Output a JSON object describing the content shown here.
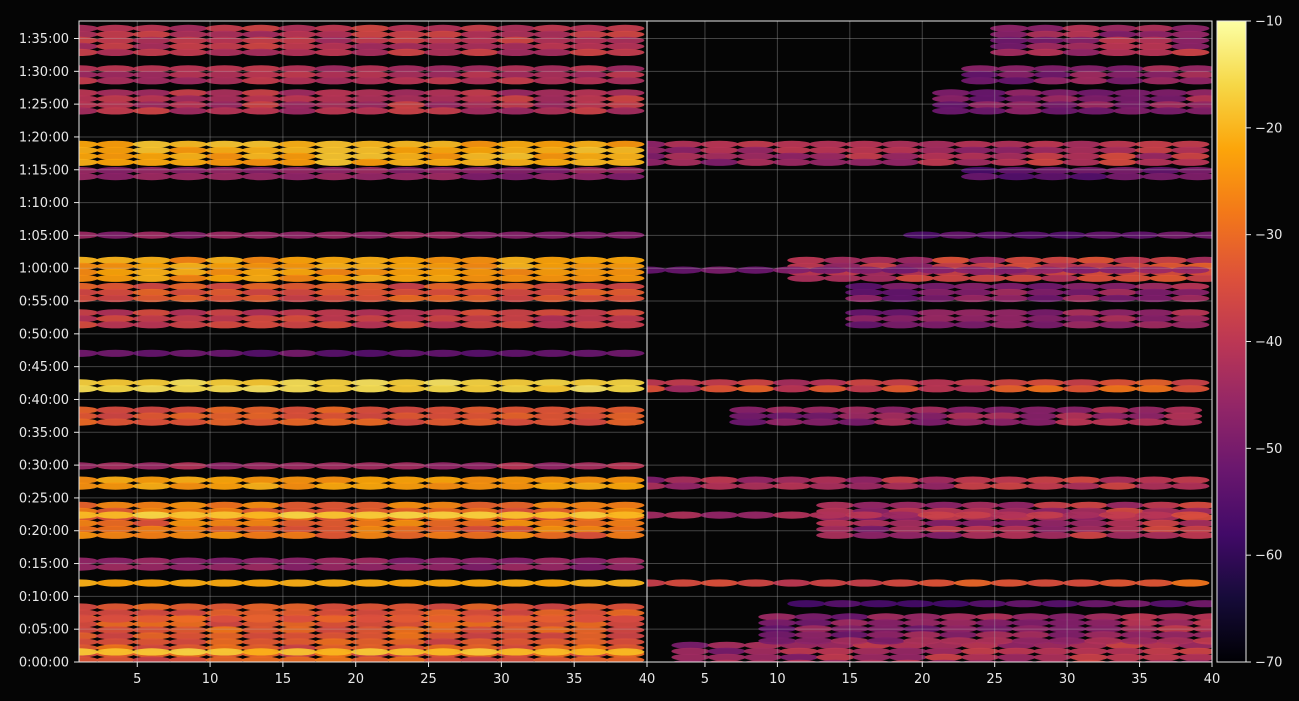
{
  "chart_data": {
    "type": "heatmap",
    "title": "",
    "colormap": "inferno",
    "background_color": "#050505",
    "grid": true,
    "y_tick_labels": [
      "0:00:00",
      "0:05:00",
      "0:10:00",
      "0:15:00",
      "0:20:00",
      "0:25:00",
      "0:30:00",
      "0:35:00",
      "0:40:00",
      "0:45:00",
      "0:50:00",
      "0:55:00",
      "1:00:00",
      "1:05:00",
      "1:10:00",
      "1:15:00",
      "1:20:00",
      "1:25:00",
      "1:30:00",
      "1:35:00"
    ],
    "y_tick_seconds": [
      0,
      300,
      600,
      900,
      1200,
      1500,
      1800,
      2100,
      2400,
      2700,
      3000,
      3300,
      3600,
      3900,
      4200,
      4500,
      4800,
      5100,
      5400,
      5700
    ],
    "ylim_seconds": [
      0,
      5860
    ],
    "colorbar": {
      "vmin": -70,
      "vmax": -10,
      "ticks": [
        -70,
        -60,
        -50,
        -40,
        -30,
        -20,
        -10
      ],
      "tick_labels": [
        "−70",
        "−60",
        "−50",
        "−40",
        "−30",
        "−20",
        "−10"
      ]
    },
    "panels": [
      {
        "name": "left",
        "xlim": [
          1,
          40
        ],
        "x_ticks": [
          5,
          10,
          15,
          20,
          25,
          30,
          35,
          40
        ],
        "x_tick_labels": [
          "5",
          "10",
          "15",
          "20",
          "25",
          "30",
          "35",
          "40"
        ],
        "bands": [
          {
            "t_start": 0,
            "t_end": 430,
            "level_low": -42,
            "level_high": -28
          },
          {
            "t_start": 80,
            "t_end": 120,
            "level_low": -24,
            "level_high": -16
          },
          {
            "t_start": 400,
            "t_end": 530,
            "level_low": -40,
            "level_high": -30
          },
          {
            "t_start": 720,
            "t_end": 750,
            "level_low": -24,
            "level_high": -20
          },
          {
            "t_start": 890,
            "t_end": 950,
            "level_low": -52,
            "level_high": -44
          },
          {
            "t_start": 1160,
            "t_end": 1460,
            "level_low": -40,
            "level_high": -24
          },
          {
            "t_start": 1330,
            "t_end": 1370,
            "level_low": -22,
            "level_high": -16
          },
          {
            "t_start": 1610,
            "t_end": 1690,
            "level_low": -28,
            "level_high": -20
          },
          {
            "t_start": 1780,
            "t_end": 1820,
            "level_low": -50,
            "level_high": -40
          },
          {
            "t_start": 2180,
            "t_end": 2330,
            "level_low": -40,
            "level_high": -30
          },
          {
            "t_start": 2510,
            "t_end": 2580,
            "level_low": -20,
            "level_high": -14
          },
          {
            "t_start": 2820,
            "t_end": 2850,
            "level_low": -58,
            "level_high": -50
          },
          {
            "t_start": 3080,
            "t_end": 3220,
            "level_low": -46,
            "level_high": -34
          },
          {
            "t_start": 3350,
            "t_end": 3460,
            "level_low": -42,
            "level_high": -30
          },
          {
            "t_start": 3520,
            "t_end": 3700,
            "level_low": -30,
            "level_high": -20
          },
          {
            "t_start": 3880,
            "t_end": 3930,
            "level_low": -52,
            "level_high": -44
          },
          {
            "t_start": 4440,
            "t_end": 4520,
            "level_low": -52,
            "level_high": -44
          },
          {
            "t_start": 5040,
            "t_end": 5230,
            "level_low": -50,
            "level_high": -36
          },
          {
            "t_start": 5330,
            "t_end": 5450,
            "level_low": -48,
            "level_high": -38
          },
          {
            "t_start": 5560,
            "t_end": 5820,
            "level_low": -48,
            "level_high": -36
          },
          {
            "t_start": 4580,
            "t_end": 4760,
            "level_low": -28,
            "level_high": -18
          }
        ]
      },
      {
        "name": "right",
        "xlim": [
          1,
          40
        ],
        "x_ticks": [
          5,
          10,
          15,
          20,
          25,
          30,
          35,
          40
        ],
        "x_tick_labels": [
          "5",
          "10",
          "15",
          "20",
          "25",
          "30",
          "35",
          "40"
        ],
        "bands": [
          {
            "t_start": 0,
            "t_end": 180,
            "level_low": -50,
            "level_high": -34,
            "x_start": 4
          },
          {
            "t_start": 180,
            "t_end": 440,
            "level_low": -52,
            "level_high": -38,
            "x_start": 10
          },
          {
            "t_start": 520,
            "t_end": 560,
            "level_low": -58,
            "level_high": -48,
            "x_start": 12
          },
          {
            "t_start": 720,
            "t_end": 750,
            "level_low": -40,
            "level_high": -28
          },
          {
            "t_start": 1160,
            "t_end": 1460,
            "level_low": -50,
            "level_high": -34,
            "x_start": 14
          },
          {
            "t_start": 1330,
            "t_end": 1370,
            "level_low": -46,
            "level_high": -34
          },
          {
            "t_start": 1610,
            "t_end": 1690,
            "level_low": -48,
            "level_high": -34
          },
          {
            "t_start": 2180,
            "t_end": 2330,
            "level_low": -50,
            "level_high": -38,
            "x_start": 8
          },
          {
            "t_start": 2510,
            "t_end": 2580,
            "level_low": -46,
            "level_high": -26
          },
          {
            "t_start": 3080,
            "t_end": 3220,
            "level_low": -52,
            "level_high": -40,
            "x_start": 16
          },
          {
            "t_start": 3350,
            "t_end": 3460,
            "level_low": -54,
            "level_high": -40,
            "x_start": 16
          },
          {
            "t_start": 3520,
            "t_end": 3700,
            "level_low": -50,
            "level_high": -30,
            "x_start": 12
          },
          {
            "t_start": 3580,
            "t_end": 3610,
            "level_low": -50,
            "level_high": -44
          },
          {
            "t_start": 3880,
            "t_end": 3930,
            "level_low": -56,
            "level_high": -46,
            "x_start": 20
          },
          {
            "t_start": 4440,
            "t_end": 4520,
            "level_low": -56,
            "level_high": -46,
            "x_start": 24
          },
          {
            "t_start": 4580,
            "t_end": 4760,
            "level_low": -50,
            "level_high": -34
          },
          {
            "t_start": 5040,
            "t_end": 5230,
            "level_low": -54,
            "level_high": -40,
            "x_start": 22
          },
          {
            "t_start": 5330,
            "t_end": 5450,
            "level_low": -52,
            "level_high": -40,
            "x_start": 24
          },
          {
            "t_start": 5560,
            "t_end": 5820,
            "level_low": -52,
            "level_high": -36,
            "x_start": 26
          }
        ]
      }
    ]
  }
}
